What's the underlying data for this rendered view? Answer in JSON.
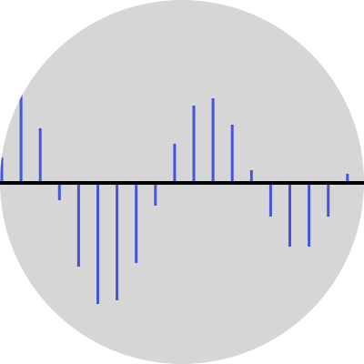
{
  "colors": {
    "background": "#ffffff",
    "disc": "#d6d6d6",
    "stem": "#4455dd",
    "baseline": "#000000"
  },
  "chart_data": {
    "type": "bar",
    "style": "stem",
    "title": "",
    "xlabel": "",
    "ylabel": "",
    "grid": false,
    "legend": "none",
    "x": [
      0,
      1,
      2,
      3,
      4,
      5,
      6,
      7,
      8,
      9,
      10,
      11,
      12,
      13,
      14,
      15,
      16,
      17,
      18,
      19
    ],
    "values": [
      28,
      98,
      60,
      -19,
      -92,
      -133,
      -129,
      -88,
      -25,
      43,
      85,
      93,
      64,
      14,
      -37,
      -70,
      -70,
      -37,
      10,
      0
    ],
    "ylim": [
      -200,
      200
    ]
  }
}
